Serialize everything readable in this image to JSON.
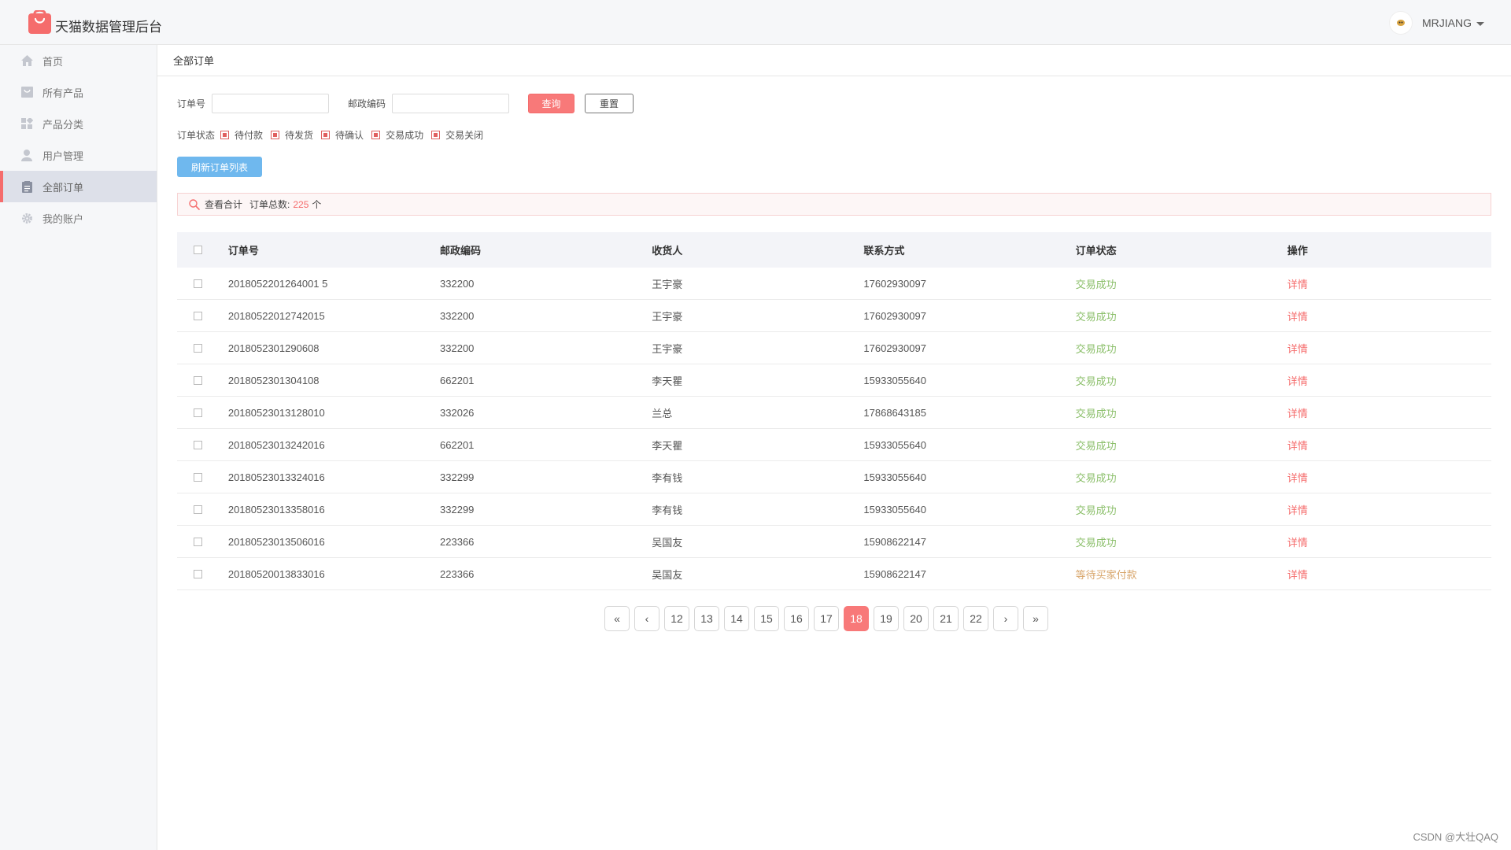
{
  "app": {
    "title": "天猫数据管理后台",
    "username": "MRJIANG"
  },
  "sidebar": {
    "items": [
      {
        "label": "首页",
        "icon": "home-icon"
      },
      {
        "label": "所有产品",
        "icon": "product-icon"
      },
      {
        "label": "产品分类",
        "icon": "category-icon"
      },
      {
        "label": "用户管理",
        "icon": "user-icon"
      },
      {
        "label": "全部订单",
        "icon": "order-icon",
        "active": true
      },
      {
        "label": "我的账户",
        "icon": "gear-icon"
      }
    ]
  },
  "breadcrumb": "全部订单",
  "filters": {
    "order_no_label": "订单号",
    "zip_label": "邮政编码",
    "query_label": "查询",
    "reset_label": "重置",
    "status_label": "订单状态",
    "status_options": [
      "待付款",
      "待发货",
      "待确认",
      "交易成功",
      "交易关闭"
    ]
  },
  "refresh_label": "刷新订单列表",
  "summary": {
    "view": "查看合计",
    "total_label": "订单总数:",
    "total": "225",
    "unit": "个"
  },
  "table": {
    "headers": [
      "订单号",
      "邮政编码",
      "收货人",
      "联系方式",
      "订单状态",
      "操作"
    ],
    "rows": [
      {
        "order": "2018052201264001 5",
        "zip": "332200",
        "name": "王宇豪",
        "phone": "17602930097",
        "status": "交易成功",
        "action": "详情"
      },
      {
        "order": "20180522012742015",
        "zip": "332200",
        "name": "王宇豪",
        "phone": "17602930097",
        "status": "交易成功",
        "action": "详情"
      },
      {
        "order": "2018052301290608",
        "zip": "332200",
        "name": "王宇豪",
        "phone": "17602930097",
        "status": "交易成功",
        "action": "详情"
      },
      {
        "order": "2018052301304108",
        "zip": "662201",
        "name": "李天瞿",
        "phone": "15933055640",
        "status": "交易成功",
        "action": "详情"
      },
      {
        "order": "20180523013128010",
        "zip": "332026",
        "name": "兰总",
        "phone": "17868643185",
        "status": "交易成功",
        "action": "详情"
      },
      {
        "order": "20180523013242016",
        "zip": "662201",
        "name": "李天瞿",
        "phone": "15933055640",
        "status": "交易成功",
        "action": "详情"
      },
      {
        "order": "20180523013324016",
        "zip": "332299",
        "name": "李有钱",
        "phone": "15933055640",
        "status": "交易成功",
        "action": "详情"
      },
      {
        "order": "20180523013358016",
        "zip": "332299",
        "name": "李有钱",
        "phone": "15933055640",
        "status": "交易成功",
        "action": "详情"
      },
      {
        "order": "20180523013506016",
        "zip": "223366",
        "name": "吴国友",
        "phone": "15908622147",
        "status": "交易成功",
        "action": "详情"
      },
      {
        "order": "20180520013833016",
        "zip": "223366",
        "name": "吴国友",
        "phone": "15908622147",
        "status": "等待买家付款",
        "action": "详情"
      }
    ]
  },
  "pagination": {
    "first": "«",
    "prev": "‹",
    "next": "›",
    "last": "»",
    "pages": [
      "12",
      "13",
      "14",
      "15",
      "16",
      "17",
      "18",
      "19",
      "20",
      "21",
      "22"
    ],
    "current": "18"
  },
  "watermark": "CSDN @大壮QAQ",
  "colors": {
    "accent": "#f87979",
    "success": "#8bbf6a",
    "pending": "#d8a56a",
    "refresh": "#6fb8ee"
  }
}
